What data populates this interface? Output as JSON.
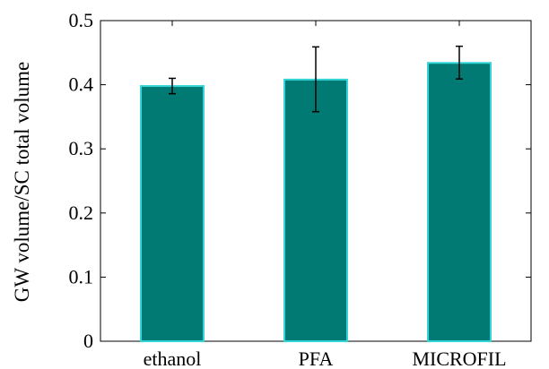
{
  "chart_data": {
    "type": "bar",
    "title": "",
    "xlabel": "",
    "ylabel": "GW volume/SC total volume",
    "categories": [
      "ethanol",
      "PFA",
      "MICROFIL"
    ],
    "values": [
      0.398,
      0.408,
      0.434
    ],
    "error_lower": [
      0.386,
      0.358,
      0.409
    ],
    "error_upper": [
      0.41,
      0.459,
      0.46
    ],
    "ylim": [
      0,
      0.5
    ],
    "yticks": [
      "0",
      "0.1",
      "0.2",
      "0.3",
      "0.4",
      "0.5"
    ],
    "ytick_values": [
      0,
      0.1,
      0.2,
      0.3,
      0.4,
      0.5
    ],
    "grid": false,
    "colors": {
      "bar_fill": "#007A73",
      "bar_edge": "#33D6D6",
      "error_bar": "#000000",
      "axis": "#000000"
    }
  }
}
